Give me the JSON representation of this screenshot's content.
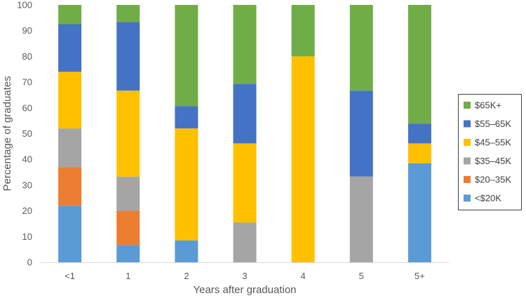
{
  "chart_data": {
    "type": "bar",
    "stacked": true,
    "categories": [
      "<1",
      "1",
      "2",
      "3",
      "4",
      "5",
      "5+"
    ],
    "xlabel": "Years after graduation",
    "ylabel": "Percentage of graduates",
    "ylim": [
      0,
      100
    ],
    "yticks": [
      "0",
      "10",
      "20",
      "30",
      "40",
      "50",
      "60",
      "70",
      "80",
      "90",
      "100"
    ],
    "grid": false,
    "legend_position": "right",
    "series": [
      {
        "name": "<$20K",
        "color": "#5b9bd5",
        "values": [
          22,
          6.7,
          8.5,
          0,
          0,
          0,
          38.5
        ]
      },
      {
        "name": "$20–35K",
        "color": "#ed7d31",
        "values": [
          15,
          13.3,
          0,
          0,
          0,
          0,
          0
        ]
      },
      {
        "name": "$35–45K",
        "color": "#a5a5a5",
        "values": [
          15,
          13.3,
          0,
          15.4,
          0,
          33.3,
          0
        ]
      },
      {
        "name": "$45–55K",
        "color": "#ffc000",
        "values": [
          22,
          33.4,
          43.5,
          30.8,
          80,
          0,
          7.7
        ]
      },
      {
        "name": "$55–65K",
        "color": "#4472c4",
        "values": [
          18.5,
          26.7,
          8.7,
          23,
          0,
          33.4,
          7.7
        ]
      },
      {
        "name": "$65K+",
        "color": "#70ad47",
        "values": [
          7.5,
          6.6,
          39.3,
          30.8,
          20,
          33.3,
          46.1
        ]
      }
    ]
  }
}
